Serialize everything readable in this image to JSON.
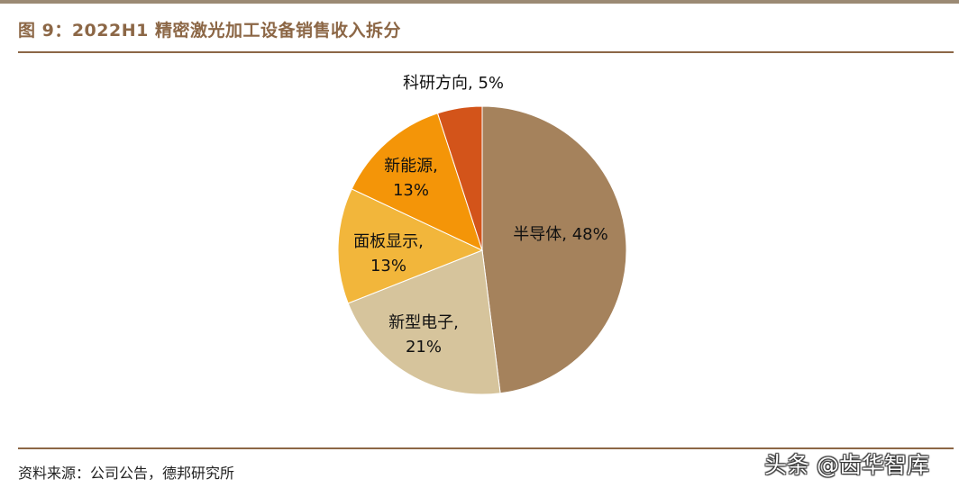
{
  "figure": {
    "title": "图 9：2022H1 精密激光加工设备销售收入拆分",
    "source": "资料来源：公司公告，德邦研究所",
    "watermark": "头条 @齿华智库"
  },
  "chart_data": {
    "type": "pie",
    "start_angle": "12 o'clock, clockwise",
    "slices": [
      {
        "name": "半导体",
        "value": 48,
        "label_lines": [
          "半导体, 48%"
        ],
        "color": "#a5825c"
      },
      {
        "name": "新型电子",
        "value": 21,
        "label_lines": [
          "新型电子,",
          "21%"
        ],
        "color": "#d6c49c"
      },
      {
        "name": "面板显示",
        "value": 13,
        "label_lines": [
          "面板显示,",
          "13%"
        ],
        "color": "#f2b63b"
      },
      {
        "name": "新能源",
        "value": 13,
        "label_lines": [
          "新能源,",
          "13%"
        ],
        "color": "#f49508"
      },
      {
        "name": "科研方向",
        "value": 5,
        "label_lines": [
          "科研方向, 5%"
        ],
        "color": "#d3541a"
      }
    ]
  }
}
